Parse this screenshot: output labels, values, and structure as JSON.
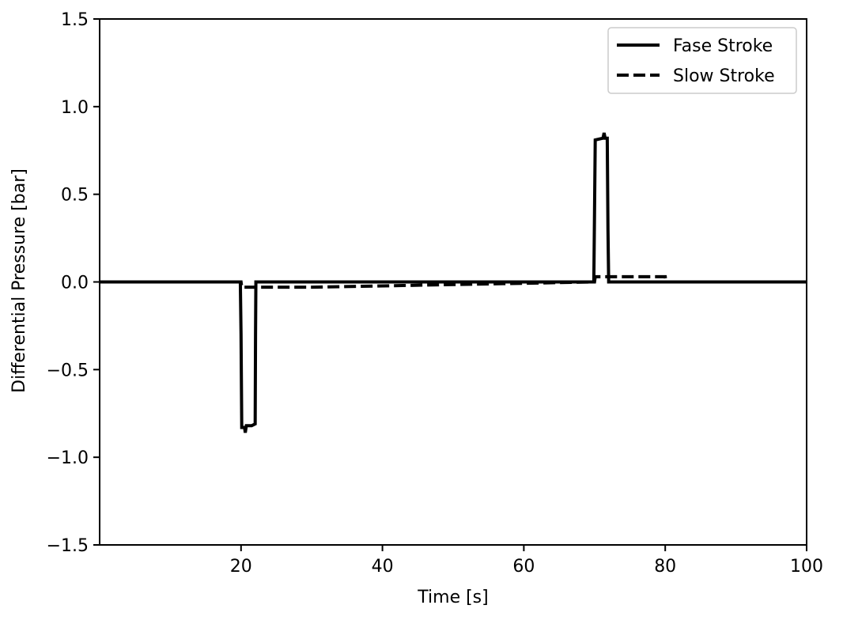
{
  "chart_data": {
    "type": "line",
    "title": "",
    "xlabel": "Time [s]",
    "ylabel": "Differential Pressure [bar]",
    "xlim": [
      0,
      100
    ],
    "ylim": [
      -1.5,
      1.5
    ],
    "xticks": [
      20,
      40,
      60,
      80,
      100
    ],
    "xtick_labels": [
      "20",
      "40",
      "60",
      "80",
      "100"
    ],
    "yticks": [
      -1.5,
      -1.0,
      -0.5,
      0.0,
      0.5,
      1.0,
      1.5
    ],
    "ytick_labels": [
      "−1.5",
      "−1.0",
      "−0.5",
      "0.0",
      "0.5",
      "1.0",
      "1.5"
    ],
    "grid": false,
    "legend_position": "top-right",
    "series": [
      {
        "name": "Fase Stroke",
        "style": "solid",
        "color": "#000000",
        "x": [
          0,
          19.9,
          20.0,
          20.1,
          20.5,
          20.6,
          20.75,
          21.5,
          22.0,
          22.05,
          22.1,
          69.9,
          70.0,
          70.1,
          71.2,
          71.35,
          71.5,
          71.8,
          71.9,
          72.0,
          100
        ],
        "y": [
          0,
          0,
          -0.3,
          -0.83,
          -0.83,
          -0.86,
          -0.82,
          -0.82,
          -0.81,
          -0.3,
          0,
          0,
          0.4,
          0.81,
          0.82,
          0.85,
          0.82,
          0.82,
          0.3,
          0.0,
          0
        ]
      },
      {
        "name": "Slow Stroke",
        "style": "dashed",
        "color": "#000000",
        "x": [
          0,
          20.0,
          20.1,
          30,
          70.0,
          70.1,
          80,
          80.1,
          100
        ],
        "y": [
          0,
          0,
          -0.03,
          -0.03,
          0,
          0.03,
          0.03,
          0,
          0
        ]
      }
    ]
  }
}
